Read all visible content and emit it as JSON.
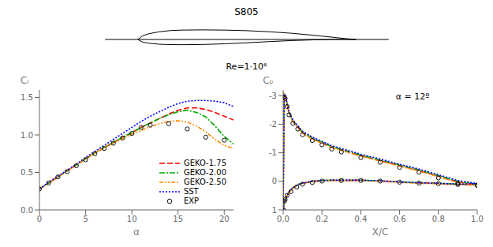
{
  "chart_data": [
    {
      "type": "line",
      "title": "S805",
      "subtitle": "Re=1·10⁶",
      "xlim": [
        -0.18,
        1.18
      ],
      "ylim": [
        -0.18,
        0.18
      ],
      "tick_labels": false,
      "grid": false,
      "series": [
        {
          "color": "#000000",
          "line_style": "solid",
          "x": [
            -0.15,
            1.15
          ],
          "values": [
            0,
            0
          ]
        },
        {
          "color": "#000000",
          "line_style": "solid",
          "x": [
            0.0,
            0.02,
            0.05,
            0.1,
            0.15,
            0.2,
            0.3,
            0.4,
            0.5,
            0.6,
            0.7,
            0.8,
            0.9,
            0.95,
            1.0
          ],
          "values": [
            0.0,
            0.03,
            0.05,
            0.068,
            0.078,
            0.082,
            0.084,
            0.082,
            0.077,
            0.068,
            0.055,
            0.038,
            0.018,
            0.008,
            0.0
          ]
        },
        {
          "color": "#000000",
          "line_style": "solid",
          "x": [
            0.0,
            0.02,
            0.05,
            0.1,
            0.15,
            0.2,
            0.3,
            0.4,
            0.5,
            0.6,
            0.7,
            0.8,
            0.9,
            0.95,
            1.0
          ],
          "values": [
            0.0,
            -0.022,
            -0.033,
            -0.042,
            -0.045,
            -0.046,
            -0.044,
            -0.038,
            -0.029,
            -0.019,
            -0.01,
            -0.004,
            0.0,
            0.001,
            0.0
          ]
        }
      ]
    },
    {
      "type": "line",
      "x_label": "α",
      "y_label": "Cₗ",
      "xlim": [
        0,
        21
      ],
      "ylim": [
        0,
        1.6
      ],
      "xticks": [
        0,
        5,
        10,
        15,
        20
      ],
      "yticks": [
        {
          "value": 0,
          "label": "0.0"
        },
        0.5,
        {
          "value": 1,
          "label": "1.0"
        },
        1.5
      ],
      "grid": false,
      "legend": "lower right",
      "series": [
        {
          "name": "GEKO-1.75",
          "color": "#ff0000",
          "line_style": "dashed",
          "x": [
            0,
            1,
            2,
            3,
            4,
            5,
            6,
            7,
            8,
            9,
            10,
            11,
            12,
            13,
            14,
            15,
            16,
            17,
            18,
            19,
            20,
            21
          ],
          "values": [
            0.28,
            0.36,
            0.44,
            0.52,
            0.6,
            0.68,
            0.76,
            0.83,
            0.9,
            0.97,
            1.03,
            1.1,
            1.16,
            1.22,
            1.28,
            1.33,
            1.36,
            1.36,
            1.34,
            1.3,
            1.25,
            1.2
          ]
        },
        {
          "name": "GEKO-2.00",
          "color": "#00aa00",
          "line_style": "dashdot",
          "x": [
            0,
            1,
            2,
            3,
            4,
            5,
            6,
            7,
            8,
            9,
            10,
            11,
            12,
            13,
            14,
            15,
            16,
            17,
            18,
            19,
            20,
            21
          ],
          "values": [
            0.28,
            0.36,
            0.44,
            0.52,
            0.6,
            0.68,
            0.76,
            0.83,
            0.9,
            0.97,
            1.03,
            1.1,
            1.16,
            1.22,
            1.27,
            1.31,
            1.33,
            1.3,
            1.24,
            1.12,
            0.98,
            0.88
          ]
        },
        {
          "name": "GEKO-2.50",
          "color": "#ff8800",
          "line_style": "dashdotdot",
          "x": [
            0,
            1,
            2,
            3,
            4,
            5,
            6,
            7,
            8,
            9,
            10,
            11,
            12,
            13,
            14,
            15,
            16,
            17,
            18,
            19,
            20,
            21
          ],
          "values": [
            0.28,
            0.36,
            0.44,
            0.52,
            0.6,
            0.68,
            0.76,
            0.83,
            0.89,
            0.95,
            1.01,
            1.06,
            1.11,
            1.15,
            1.18,
            1.19,
            1.17,
            1.12,
            1.04,
            0.94,
            0.86,
            0.82
          ]
        },
        {
          "name": "SST",
          "color": "#0000ff",
          "line_style": "dotted",
          "x": [
            0,
            1,
            2,
            3,
            4,
            5,
            6,
            7,
            8,
            9,
            10,
            11,
            12,
            13,
            14,
            15,
            16,
            17,
            18,
            19,
            20,
            21
          ],
          "values": [
            0.28,
            0.37,
            0.45,
            0.53,
            0.61,
            0.7,
            0.78,
            0.86,
            0.94,
            1.02,
            1.1,
            1.18,
            1.25,
            1.31,
            1.37,
            1.42,
            1.45,
            1.46,
            1.46,
            1.45,
            1.43,
            1.38
          ]
        },
        {
          "name": "EXP",
          "type": "scatter",
          "marker": "o",
          "color": "#111111",
          "x": [
            0,
            1,
            2,
            3,
            4,
            5,
            6,
            7,
            8,
            9,
            10,
            11,
            12,
            14,
            16,
            18,
            20
          ],
          "values": [
            0.28,
            0.36,
            0.44,
            0.51,
            0.59,
            0.67,
            0.75,
            0.82,
            0.89,
            0.96,
            1.02,
            1.1,
            1.13,
            1.15,
            1.08,
            0.97,
            0.93
          ]
        }
      ]
    },
    {
      "type": "line",
      "x_label": "X/C",
      "y_label": "Cₚ",
      "annotations": [
        "α = 12º"
      ],
      "xlim": [
        0,
        1
      ],
      "ylim": [
        1.0,
        -3.2
      ],
      "xticks": [
        {
          "value": 0,
          "label": "0.0"
        },
        0.2,
        0.4,
        0.6,
        0.8,
        {
          "value": 1,
          "label": "1.0"
        }
      ],
      "yticks": [
        -3,
        -2,
        -1,
        0,
        1
      ],
      "grid": false,
      "series": [
        {
          "color": "#ff0000",
          "line_style": "dashed",
          "x": [
            0.0,
            0.005,
            0.01,
            0.02,
            0.03,
            0.05,
            0.075,
            0.1,
            0.15,
            0.2,
            0.25,
            0.3,
            0.4,
            0.5,
            0.6,
            0.7,
            0.8,
            0.9,
            1.0
          ],
          "values": [
            1.0,
            -3.05,
            -3.0,
            -2.7,
            -2.4,
            -2.1,
            -1.9,
            -1.7,
            -1.5,
            -1.35,
            -1.2,
            -1.1,
            -0.9,
            -0.73,
            -0.55,
            -0.38,
            -0.18,
            0.02,
            0.12
          ]
        },
        {
          "color": "#ff0000",
          "line_style": "dashed",
          "x": [
            0.0,
            0.005,
            0.01,
            0.02,
            0.03,
            0.05,
            0.075,
            0.1,
            0.15,
            0.2,
            0.25,
            0.3,
            0.4,
            0.5,
            0.6,
            0.7,
            0.8,
            0.9,
            1.0
          ],
          "values": [
            1.0,
            0.7,
            0.65,
            0.5,
            0.38,
            0.22,
            0.12,
            0.06,
            0.0,
            -0.03,
            -0.04,
            -0.04,
            -0.04,
            -0.02,
            0.02,
            0.05,
            0.07,
            0.1,
            0.12
          ]
        },
        {
          "color": "#00aa00",
          "line_style": "dashdot",
          "x": [
            0.0,
            0.005,
            0.01,
            0.02,
            0.03,
            0.05,
            0.075,
            0.1,
            0.15,
            0.2,
            0.25,
            0.3,
            0.4,
            0.5,
            0.6,
            0.7,
            0.8,
            0.9,
            1.0
          ],
          "values": [
            1.0,
            -3.05,
            -3.0,
            -2.72,
            -2.42,
            -2.12,
            -1.92,
            -1.72,
            -1.52,
            -1.37,
            -1.22,
            -1.12,
            -0.92,
            -0.75,
            -0.57,
            -0.4,
            -0.2,
            0.0,
            0.1
          ]
        },
        {
          "color": "#00aa00",
          "line_style": "dashdot",
          "x": [
            0.0,
            0.005,
            0.01,
            0.02,
            0.03,
            0.05,
            0.075,
            0.1,
            0.15,
            0.2,
            0.25,
            0.3,
            0.4,
            0.5,
            0.6,
            0.7,
            0.8,
            0.9,
            1.0
          ],
          "values": [
            1.0,
            0.7,
            0.65,
            0.5,
            0.38,
            0.22,
            0.12,
            0.06,
            0.0,
            -0.03,
            -0.04,
            -0.04,
            -0.04,
            -0.02,
            0.02,
            0.05,
            0.07,
            0.1,
            0.1
          ]
        },
        {
          "color": "#ff8800",
          "line_style": "dashdotdot",
          "x": [
            0.0,
            0.005,
            0.01,
            0.02,
            0.03,
            0.05,
            0.075,
            0.1,
            0.15,
            0.2,
            0.25,
            0.3,
            0.4,
            0.5,
            0.6,
            0.7,
            0.8,
            0.9,
            1.0
          ],
          "values": [
            1.0,
            -3.05,
            -3.0,
            -2.68,
            -2.38,
            -2.08,
            -1.88,
            -1.68,
            -1.48,
            -1.33,
            -1.18,
            -1.08,
            -0.88,
            -0.71,
            -0.53,
            -0.36,
            -0.16,
            0.04,
            0.14
          ]
        },
        {
          "color": "#ff8800",
          "line_style": "dashdotdot",
          "x": [
            0.0,
            0.005,
            0.01,
            0.02,
            0.03,
            0.05,
            0.075,
            0.1,
            0.15,
            0.2,
            0.25,
            0.3,
            0.4,
            0.5,
            0.6,
            0.7,
            0.8,
            0.9,
            1.0
          ],
          "values": [
            1.0,
            0.72,
            0.67,
            0.52,
            0.4,
            0.24,
            0.14,
            0.08,
            0.02,
            -0.01,
            -0.02,
            -0.02,
            -0.02,
            0.0,
            0.04,
            0.07,
            0.09,
            0.12,
            0.14
          ]
        },
        {
          "color": "#0000ff",
          "line_style": "dotted",
          "x": [
            0.0,
            0.005,
            0.01,
            0.02,
            0.03,
            0.05,
            0.075,
            0.1,
            0.15,
            0.2,
            0.25,
            0.3,
            0.4,
            0.5,
            0.6,
            0.7,
            0.8,
            0.9,
            1.0
          ],
          "values": [
            1.0,
            -3.05,
            -3.05,
            -2.75,
            -2.45,
            -2.15,
            -1.95,
            -1.75,
            -1.55,
            -1.4,
            -1.25,
            -1.15,
            -0.95,
            -0.78,
            -0.6,
            -0.43,
            -0.23,
            -0.03,
            0.08
          ]
        },
        {
          "color": "#0000ff",
          "line_style": "dotted",
          "x": [
            0.0,
            0.005,
            0.01,
            0.02,
            0.03,
            0.05,
            0.075,
            0.1,
            0.15,
            0.2,
            0.25,
            0.3,
            0.4,
            0.5,
            0.6,
            0.7,
            0.8,
            0.9,
            1.0
          ],
          "values": [
            1.0,
            0.7,
            0.65,
            0.5,
            0.38,
            0.22,
            0.12,
            0.06,
            0.0,
            -0.03,
            -0.04,
            -0.04,
            -0.04,
            -0.02,
            0.02,
            0.05,
            0.07,
            0.1,
            0.08
          ]
        },
        {
          "type": "scatter",
          "marker": "o",
          "color": "#111111",
          "x": [
            0.0,
            0.005,
            0.01,
            0.02,
            0.03,
            0.05,
            0.075,
            0.1,
            0.15,
            0.2,
            0.25,
            0.3,
            0.4,
            0.5,
            0.6,
            0.7,
            0.8,
            0.9,
            1.0
          ],
          "values": [
            1.0,
            -2.95,
            -2.9,
            -2.62,
            -2.33,
            -2.03,
            -1.83,
            -1.63,
            -1.43,
            -1.28,
            -1.13,
            -1.03,
            -0.83,
            -0.67,
            -0.49,
            -0.32,
            -0.12,
            0.07,
            0.14
          ]
        },
        {
          "type": "scatter",
          "marker": "o",
          "color": "#111111",
          "x": [
            0.0,
            0.005,
            0.01,
            0.02,
            0.04,
            0.07,
            0.1,
            0.15,
            0.2,
            0.3,
            0.4,
            0.5,
            0.6,
            0.7,
            0.8,
            0.9,
            1.0
          ],
          "values": [
            1.0,
            0.7,
            0.64,
            0.49,
            0.36,
            0.2,
            0.1,
            0.04,
            -0.01,
            -0.03,
            -0.03,
            -0.01,
            0.03,
            0.06,
            0.08,
            0.11,
            0.13
          ]
        }
      ]
    }
  ]
}
